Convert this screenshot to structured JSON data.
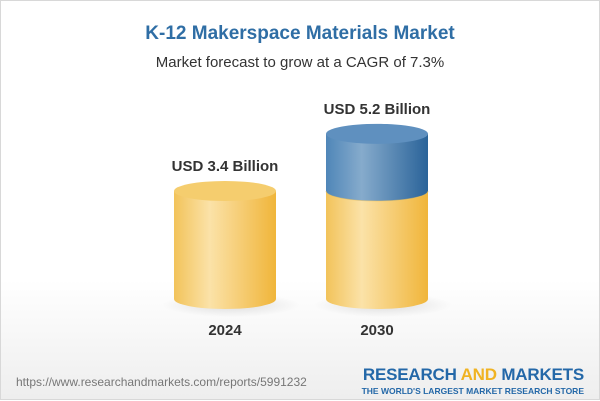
{
  "title": "K-12 Makerspace Materials Market",
  "subtitle": "Market forecast to grow at a CAGR of 7.3%",
  "footer": {
    "url": "https://www.researchandmarkets.com/reports/5991232",
    "logo_part1": "RESEARCH ",
    "logo_part2": "AND",
    "logo_part3": " MARKETS",
    "tagline": "THE WORLD'S LARGEST MARKET RESEARCH STORE"
  },
  "colors": {
    "base": "#f3c14f",
    "growth": "#3d78ab",
    "title": "#2f6ea5"
  },
  "chart_data": {
    "type": "bar",
    "style": "3d-cylinder",
    "title": "K-12 Makerspace Materials Market",
    "subtitle": "Market forecast to grow at a CAGR of 7.3%",
    "categories": [
      "2024",
      "2030"
    ],
    "values": [
      3.4,
      5.2
    ],
    "unit": "USD Billion",
    "data_labels": [
      "USD 3.4 Billion",
      "USD 5.2 Billion"
    ],
    "cagr": "7.3%"
  }
}
